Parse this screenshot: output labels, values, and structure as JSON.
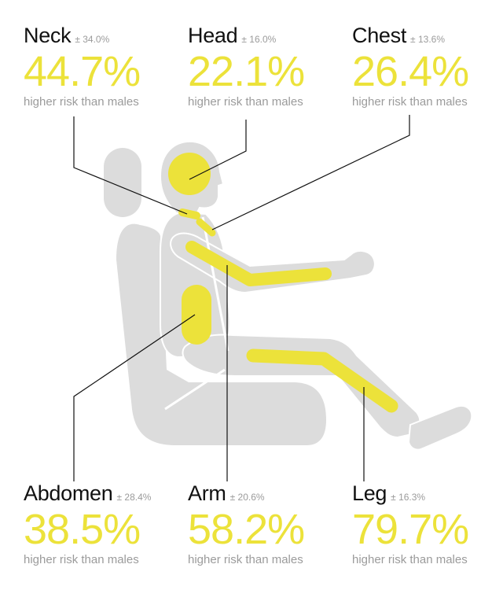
{
  "colors": {
    "highlight": "#ece23a",
    "silhouette": "#dcdcdc",
    "text": "#111111",
    "muted": "#9b9b9b"
  },
  "stats": [
    {
      "key": "neck",
      "name": "Neck",
      "moe": "± 34.0%",
      "pct": "44.7%",
      "sub": "higher risk than males"
    },
    {
      "key": "head",
      "name": "Head",
      "moe": "± 16.0%",
      "pct": "22.1%",
      "sub": "higher risk than males"
    },
    {
      "key": "chest",
      "name": "Chest",
      "moe": "± 13.6%",
      "pct": "26.4%",
      "sub": "higher risk than males"
    },
    {
      "key": "abdomen",
      "name": "Abdomen",
      "moe": "± 28.4%",
      "pct": "38.5%",
      "sub": "higher risk than males"
    },
    {
      "key": "arm",
      "name": "Arm",
      "moe": "± 20.6%",
      "pct": "58.2%",
      "sub": "higher risk than males"
    },
    {
      "key": "leg",
      "name": "Leg",
      "moe": "± 16.3%",
      "pct": "79.7%",
      "sub": "higher risk than males"
    }
  ]
}
